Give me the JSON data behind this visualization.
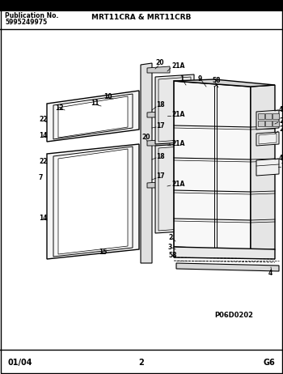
{
  "title": "MRT11CRA & MRT11CRB",
  "pub_label": "Publication No.",
  "pub_number": "5995249975",
  "bottom_left": "01/04",
  "bottom_center": "2",
  "bottom_right": "G6",
  "diagram_code": "P06D0202",
  "bg_color": "#ffffff",
  "fig_width": 3.5,
  "fig_height": 4.62,
  "dpi": 100
}
